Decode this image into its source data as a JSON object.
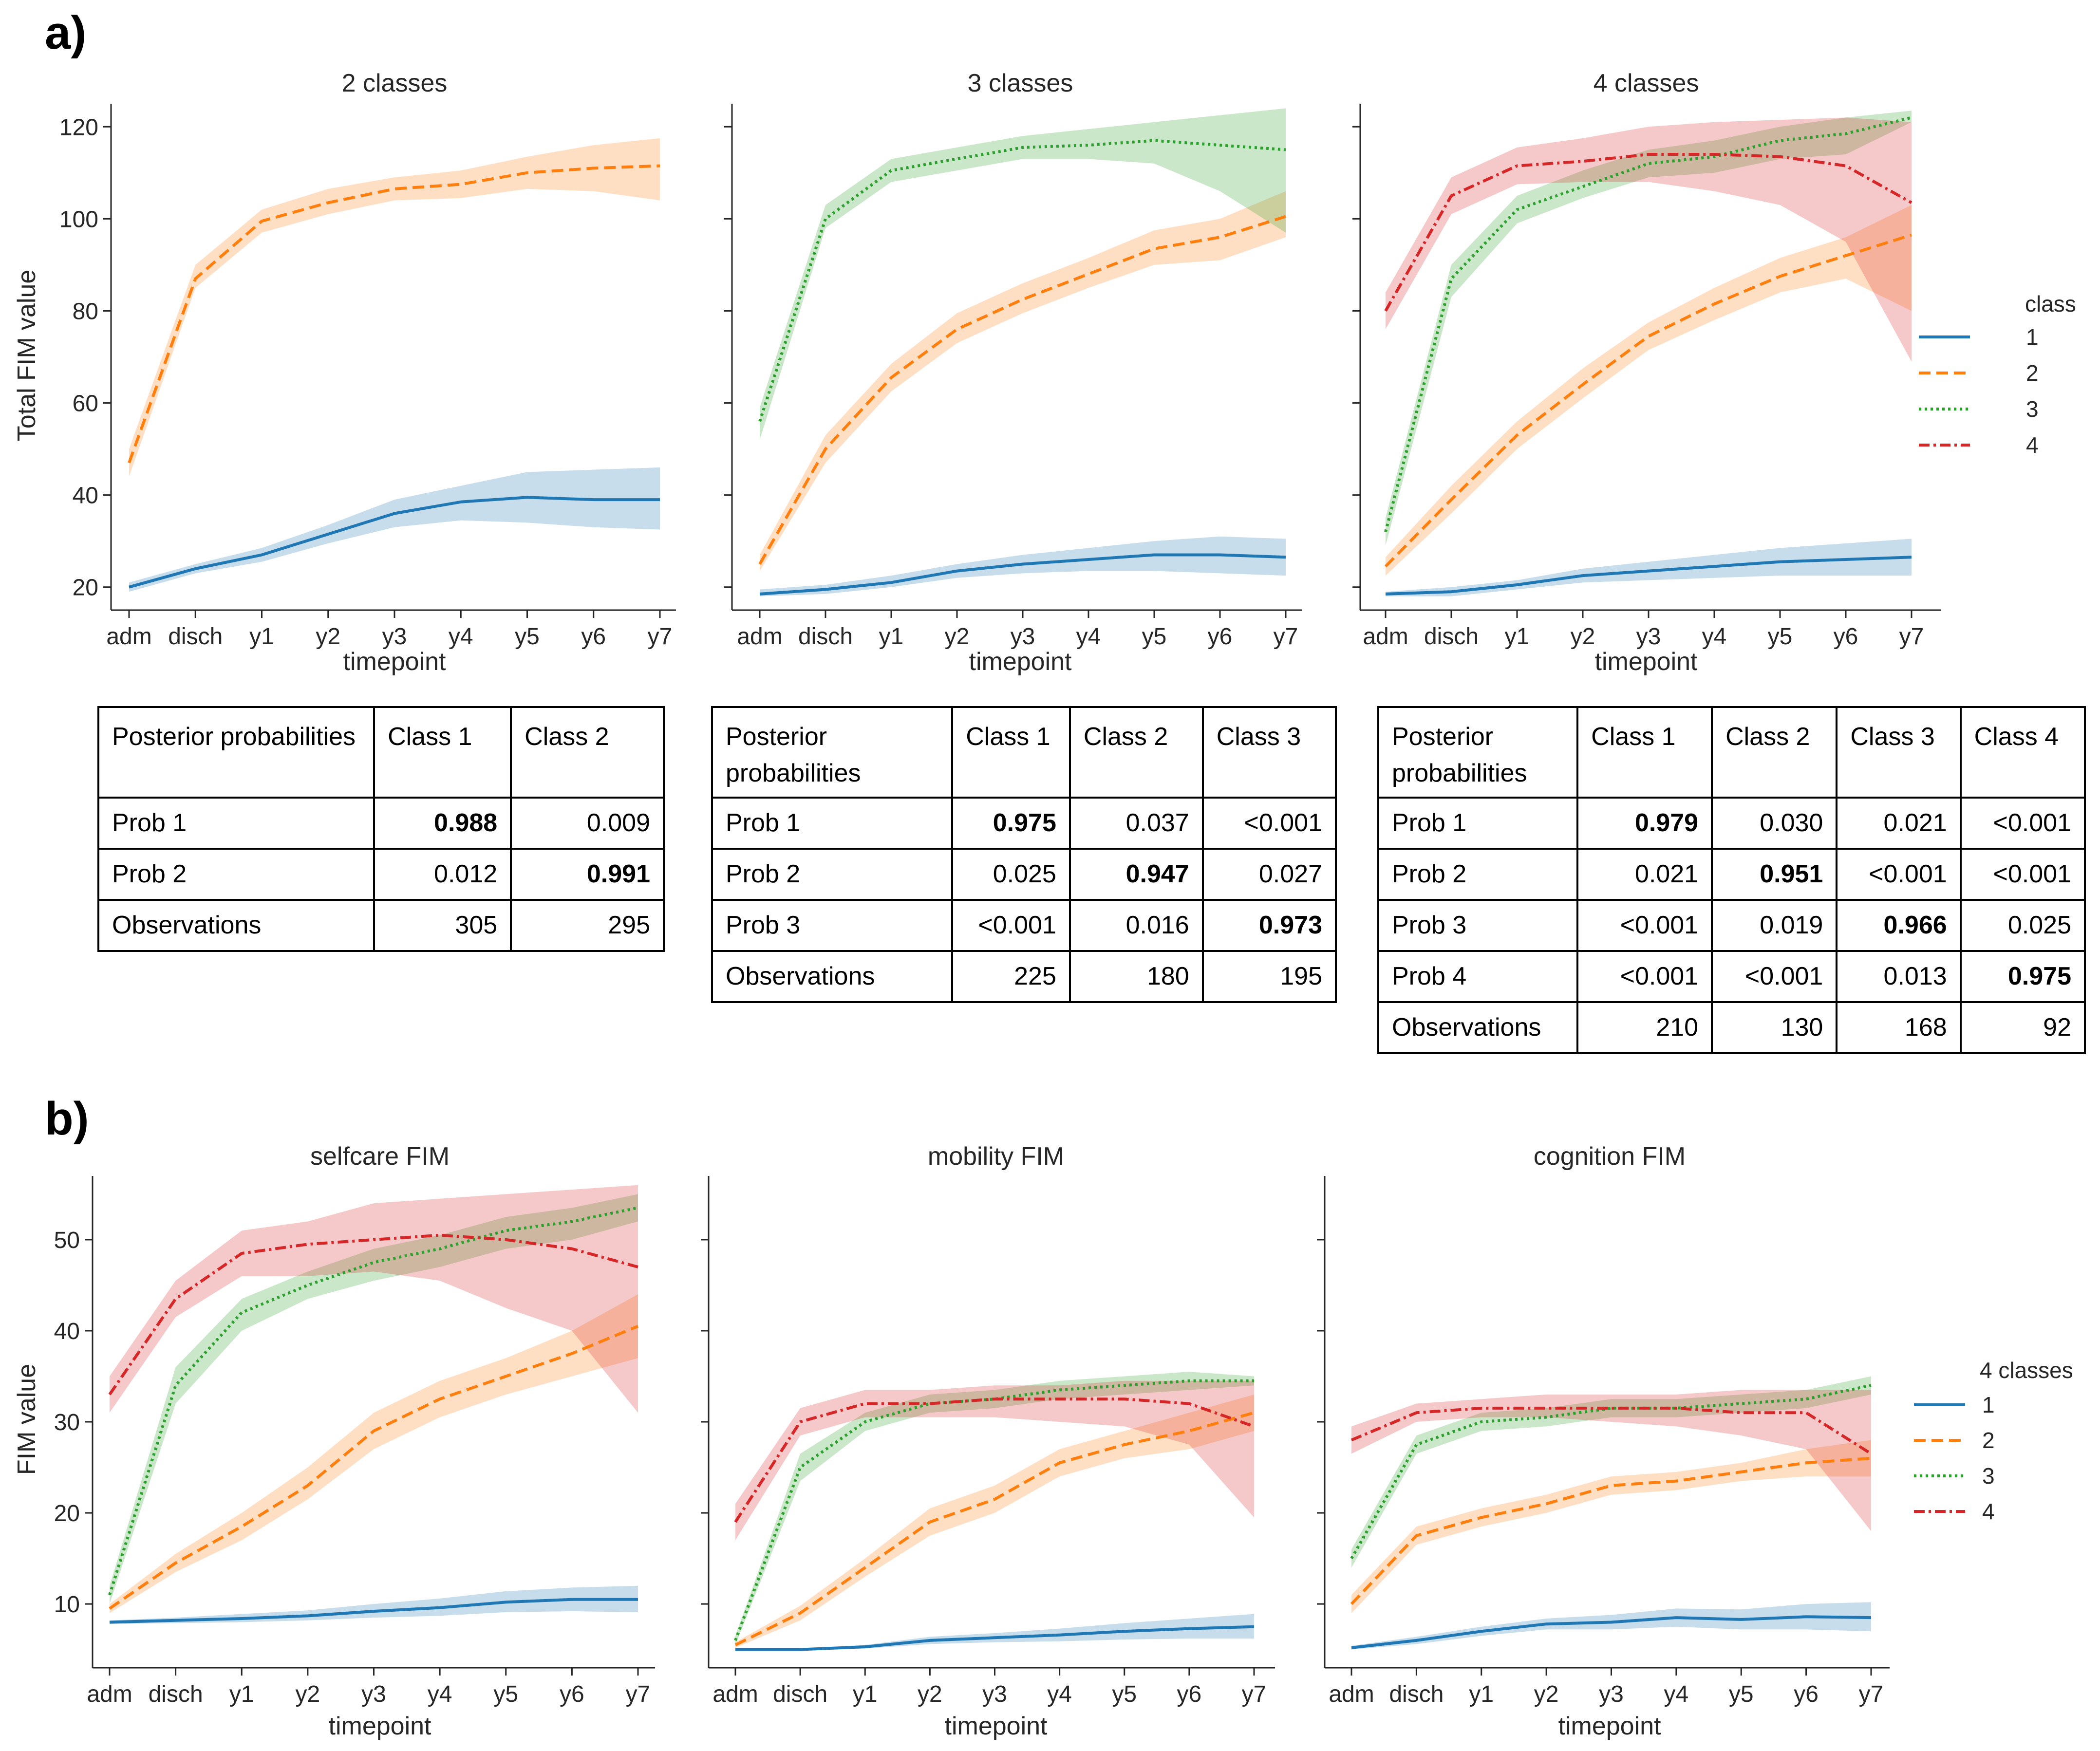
{
  "panel_a": {
    "label": "a)",
    "charts": [
      {
        "title": "2 classes",
        "ylabel": "Total FIM value",
        "xlabel": "timepoint"
      },
      {
        "title": "3 classes",
        "ylabel": "",
        "xlabel": "timepoint"
      },
      {
        "title": "4 classes",
        "ylabel": "",
        "xlabel": "timepoint"
      }
    ],
    "legend": {
      "title": "class",
      "items": [
        "1",
        "2",
        "3",
        "4"
      ]
    },
    "tables": [
      {
        "header": [
          "Posterior probabilities",
          "Class 1",
          "Class 2"
        ],
        "rows": [
          [
            "Prob 1",
            "0.988",
            "0.009"
          ],
          [
            "Prob 2",
            "0.012",
            "0.991"
          ],
          [
            "Observations",
            "305",
            "295"
          ]
        ],
        "bold_cells": [
          [
            0,
            1
          ],
          [
            1,
            2
          ]
        ]
      },
      {
        "header": [
          "Posterior probabilities",
          "Class 1",
          "Class 2",
          "Class 3"
        ],
        "rows": [
          [
            "Prob 1",
            "0.975",
            "0.037",
            "<0.001"
          ],
          [
            "Prob 2",
            "0.025",
            "0.947",
            "0.027"
          ],
          [
            "Prob 3",
            "<0.001",
            "0.016",
            "0.973"
          ],
          [
            "Observations",
            "225",
            "180",
            "195"
          ]
        ],
        "bold_cells": [
          [
            0,
            1
          ],
          [
            1,
            2
          ],
          [
            2,
            3
          ]
        ]
      },
      {
        "header": [
          "Posterior probabilities",
          "Class 1",
          "Class 2",
          "Class 3",
          "Class 4"
        ],
        "rows": [
          [
            "Prob 1",
            "0.979",
            "0.030",
            "0.021",
            "<0.001"
          ],
          [
            "Prob 2",
            "0.021",
            "0.951",
            "<0.001",
            "<0.001"
          ],
          [
            "Prob 3",
            "<0.001",
            "0.019",
            "0.966",
            "0.025"
          ],
          [
            "Prob 4",
            "<0.001",
            "<0.001",
            "0.013",
            "0.975"
          ],
          [
            "Observations",
            "210",
            "130",
            "168",
            "92"
          ]
        ],
        "bold_cells": [
          [
            0,
            1
          ],
          [
            1,
            2
          ],
          [
            2,
            3
          ],
          [
            3,
            4
          ]
        ]
      }
    ]
  },
  "panel_b": {
    "label": "b)",
    "charts": [
      {
        "title": "selfcare FIM",
        "ylabel": "FIM value",
        "xlabel": "timepoint"
      },
      {
        "title": "mobility FIM",
        "ylabel": "",
        "xlabel": "timepoint"
      },
      {
        "title": "cognition FIM",
        "ylabel": "",
        "xlabel": "timepoint"
      }
    ],
    "legend": {
      "title": "4 classes",
      "items": [
        "1",
        "2",
        "3",
        "4"
      ]
    }
  },
  "colors": {
    "1": "#1f77b4",
    "2": "#ff7f0e",
    "3": "#2ca02c",
    "4": "#d62728"
  },
  "chart_data": [
    {
      "type": "line",
      "title": "2 classes",
      "xlabel": "timepoint",
      "ylabel": "Total FIM value",
      "x": [
        "adm",
        "disch",
        "y1",
        "y2",
        "y3",
        "y4",
        "y5",
        "y6",
        "y7"
      ],
      "ylim": [
        15,
        125
      ],
      "yticks": [
        20,
        40,
        60,
        80,
        100,
        120
      ],
      "series": [
        {
          "name": "1",
          "values": [
            20,
            24,
            27,
            31.5,
            36,
            38.5,
            39.5,
            39,
            39
          ],
          "lower": [
            19,
            23,
            25.5,
            29.5,
            33,
            34.5,
            34,
            33,
            32.5
          ],
          "upper": [
            21,
            25,
            28.5,
            33.5,
            39,
            42,
            45,
            45.5,
            46
          ]
        },
        {
          "name": "2",
          "values": [
            47,
            87,
            99.5,
            103.5,
            106.5,
            107.5,
            110,
            111,
            111.5
          ],
          "lower": [
            44,
            85,
            97,
            101,
            104,
            104.5,
            106.5,
            106,
            104
          ],
          "upper": [
            50,
            90,
            102,
            106.5,
            109,
            110.5,
            113.5,
            116,
            117.5
          ]
        }
      ]
    },
    {
      "type": "line",
      "title": "3 classes",
      "xlabel": "timepoint",
      "ylabel": "",
      "x": [
        "adm",
        "disch",
        "y1",
        "y2",
        "y3",
        "y4",
        "y5",
        "y6",
        "y7"
      ],
      "ylim": [
        15,
        125
      ],
      "yticks": [
        20,
        40,
        60,
        80,
        100,
        120
      ],
      "series": [
        {
          "name": "1",
          "values": [
            18.5,
            19.5,
            21,
            23.5,
            25,
            26,
            27,
            27,
            26.5
          ],
          "lower": [
            18,
            18.5,
            20,
            22,
            23,
            23.5,
            23.5,
            23,
            22.5
          ],
          "upper": [
            19.5,
            20.5,
            22.5,
            25,
            27,
            28.5,
            30,
            31,
            30.5
          ]
        },
        {
          "name": "2",
          "values": [
            25,
            50,
            65.5,
            76,
            82.5,
            88,
            93.5,
            96,
            100.5
          ],
          "lower": [
            23.5,
            47,
            62.5,
            73,
            79.5,
            85,
            90,
            91,
            96
          ],
          "upper": [
            27,
            53,
            68.5,
            79.5,
            86,
            91.5,
            97.5,
            100,
            106
          ]
        },
        {
          "name": "3",
          "values": [
            56,
            100,
            110.5,
            113,
            115.5,
            116,
            117,
            116,
            115
          ],
          "lower": [
            52,
            98,
            108,
            110.5,
            113,
            113,
            112,
            106,
            97
          ],
          "upper": [
            59,
            103,
            113,
            115.5,
            118,
            119.5,
            121,
            122.5,
            124
          ]
        }
      ]
    },
    {
      "type": "line",
      "title": "4 classes",
      "xlabel": "timepoint",
      "ylabel": "",
      "x": [
        "adm",
        "disch",
        "y1",
        "y2",
        "y3",
        "y4",
        "y5",
        "y6",
        "y7"
      ],
      "ylim": [
        15,
        125
      ],
      "yticks": [
        20,
        40,
        60,
        80,
        100,
        120
      ],
      "series": [
        {
          "name": "1",
          "values": [
            18.5,
            19,
            20.5,
            22.5,
            23.5,
            24.5,
            25.5,
            26,
            26.5
          ],
          "lower": [
            18,
            18,
            19.5,
            21,
            21.5,
            22,
            22.5,
            22.5,
            22.5
          ],
          "upper": [
            19,
            20,
            21.5,
            24,
            25.5,
            27,
            28.5,
            29.5,
            30.5
          ]
        },
        {
          "name": "2",
          "values": [
            24.5,
            39,
            53,
            64,
            74.5,
            81.5,
            87.5,
            92,
            96.5
          ],
          "lower": [
            22.5,
            36,
            50,
            61,
            71.5,
            78,
            84,
            87,
            80
          ],
          "upper": [
            26.5,
            42,
            56,
            67.5,
            77.5,
            85,
            91.5,
            96,
            103
          ]
        },
        {
          "name": "3",
          "values": [
            32,
            87,
            102,
            107,
            112,
            113.5,
            117,
            118.5,
            122
          ],
          "lower": [
            29,
            83,
            99,
            104.5,
            109,
            110,
            113,
            114,
            121
          ],
          "upper": [
            35,
            90,
            105,
            110.5,
            115,
            117,
            120,
            122,
            123.5
          ]
        },
        {
          "name": "4",
          "values": [
            80,
            105,
            111.5,
            112.5,
            114,
            114,
            113.5,
            111.5,
            103.5
          ],
          "lower": [
            76,
            101,
            107.5,
            108,
            108,
            106,
            103,
            95,
            69
          ],
          "upper": [
            84,
            109,
            115.5,
            117.5,
            120,
            121,
            121.5,
            122,
            121
          ]
        }
      ]
    },
    {
      "type": "line",
      "title": "selfcare FIM",
      "xlabel": "timepoint",
      "ylabel": "FIM value",
      "x": [
        "adm",
        "disch",
        "y1",
        "y2",
        "y3",
        "y4",
        "y5",
        "y6",
        "y7"
      ],
      "ylim": [
        3,
        57
      ],
      "yticks": [
        10,
        20,
        30,
        40,
        50
      ],
      "series": [
        {
          "name": "1",
          "values": [
            8,
            8.2,
            8.4,
            8.7,
            9.2,
            9.6,
            10.2,
            10.5,
            10.5
          ],
          "lower": [
            7.8,
            7.9,
            8,
            8.2,
            8.5,
            8.7,
            9.1,
            9.2,
            9.1
          ],
          "upper": [
            8.2,
            8.5,
            8.9,
            9.3,
            10,
            10.6,
            11.4,
            11.8,
            12
          ]
        },
        {
          "name": "2",
          "values": [
            9.5,
            14.5,
            18.5,
            23,
            29,
            32.5,
            35,
            37.5,
            40.5
          ],
          "lower": [
            9,
            13.5,
            17,
            21.5,
            27,
            30.5,
            33,
            35,
            37
          ],
          "upper": [
            10,
            15.5,
            20,
            25,
            31,
            34.5,
            37,
            40,
            44
          ]
        },
        {
          "name": "3",
          "values": [
            11,
            34,
            42,
            45,
            47.5,
            49,
            51,
            52,
            53.5
          ],
          "lower": [
            10,
            32,
            40,
            43.5,
            45.5,
            47,
            49,
            50,
            52
          ],
          "upper": [
            12,
            36,
            43.5,
            46.5,
            49,
            50.5,
            52.5,
            53.5,
            55
          ]
        },
        {
          "name": "4",
          "values": [
            33,
            43.5,
            48.5,
            49.5,
            50,
            50.5,
            50,
            49,
            47
          ],
          "lower": [
            31,
            41.5,
            46,
            46,
            46.5,
            45.5,
            42.5,
            40,
            31
          ],
          "upper": [
            35,
            45.5,
            51,
            52,
            54,
            54.5,
            55,
            55.5,
            56
          ]
        }
      ]
    },
    {
      "type": "line",
      "title": "mobility FIM",
      "xlabel": "timepoint",
      "ylabel": "",
      "x": [
        "adm",
        "disch",
        "y1",
        "y2",
        "y3",
        "y4",
        "y5",
        "y6",
        "y7"
      ],
      "ylim": [
        3,
        57
      ],
      "yticks": [
        10,
        20,
        30,
        40,
        50
      ],
      "series": [
        {
          "name": "1",
          "values": [
            5,
            5,
            5.3,
            6,
            6.3,
            6.6,
            7,
            7.3,
            7.5
          ],
          "lower": [
            4.9,
            4.9,
            5.1,
            5.6,
            5.8,
            5.9,
            6.1,
            6.2,
            6.2
          ],
          "upper": [
            5.1,
            5.1,
            5.5,
            6.4,
            6.8,
            7.3,
            7.9,
            8.4,
            8.9
          ]
        },
        {
          "name": "2",
          "values": [
            5.5,
            9,
            14,
            19,
            21.5,
            25.5,
            27.5,
            29,
            31
          ],
          "lower": [
            5.2,
            8.2,
            13,
            17.5,
            20,
            24,
            26,
            27,
            29
          ],
          "upper": [
            5.8,
            9.8,
            15,
            20.5,
            23,
            27,
            29,
            31,
            33
          ]
        },
        {
          "name": "3",
          "values": [
            6,
            25,
            30,
            32,
            32.5,
            33.5,
            34,
            34.5,
            34.5
          ],
          "lower": [
            5.5,
            23.5,
            29,
            31,
            31.5,
            32.5,
            33,
            33.5,
            34
          ],
          "upper": [
            6.5,
            26.5,
            31,
            33,
            33.5,
            34.5,
            35,
            35.5,
            35
          ]
        },
        {
          "name": "4",
          "values": [
            19,
            30,
            32,
            32,
            32.5,
            32.5,
            32.5,
            32,
            29.5
          ],
          "lower": [
            17,
            28.5,
            30.5,
            30.5,
            30.5,
            30,
            29.5,
            27.5,
            19.5
          ],
          "upper": [
            21,
            31.5,
            33.5,
            33.5,
            34,
            34,
            34.5,
            34.5,
            34.5
          ]
        }
      ]
    },
    {
      "type": "line",
      "title": "cognition FIM",
      "xlabel": "timepoint",
      "ylabel": "",
      "x": [
        "adm",
        "disch",
        "y1",
        "y2",
        "y3",
        "y4",
        "y5",
        "y6",
        "y7"
      ],
      "ylim": [
        3,
        57
      ],
      "yticks": [
        10,
        20,
        30,
        40,
        50
      ],
      "series": [
        {
          "name": "1",
          "values": [
            5.2,
            6,
            7,
            7.8,
            8,
            8.5,
            8.3,
            8.6,
            8.5
          ],
          "lower": [
            5,
            5.6,
            6.5,
            7.2,
            7.2,
            7.5,
            7.2,
            7.2,
            7
          ],
          "upper": [
            5.4,
            6.4,
            7.5,
            8.4,
            8.8,
            9.5,
            9.4,
            10,
            10.2
          ]
        },
        {
          "name": "2",
          "values": [
            10,
            17.5,
            19.5,
            21,
            23,
            23.5,
            24.5,
            25.5,
            26
          ],
          "lower": [
            9,
            16.5,
            18.5,
            20,
            22,
            22.5,
            23.5,
            24,
            24
          ],
          "upper": [
            11,
            18.5,
            20.5,
            22,
            24,
            24.5,
            25.5,
            27,
            28
          ]
        },
        {
          "name": "3",
          "values": [
            15,
            27.5,
            30,
            30.5,
            31.5,
            31.5,
            32,
            32.5,
            34
          ],
          "lower": [
            14,
            26.5,
            29,
            29.5,
            30.5,
            30.5,
            31,
            31.5,
            33
          ],
          "upper": [
            16,
            28.5,
            31,
            31.5,
            32.5,
            32.5,
            33,
            33.5,
            35
          ]
        },
        {
          "name": "4",
          "values": [
            28,
            31,
            31.5,
            31.5,
            31.5,
            31.5,
            31,
            31,
            26.5
          ],
          "lower": [
            26.5,
            30,
            30.5,
            30.5,
            30,
            29.5,
            28.5,
            27,
            18
          ],
          "upper": [
            29.5,
            32,
            32.5,
            33,
            33,
            33,
            33.5,
            33.5,
            33.5
          ]
        }
      ]
    }
  ]
}
